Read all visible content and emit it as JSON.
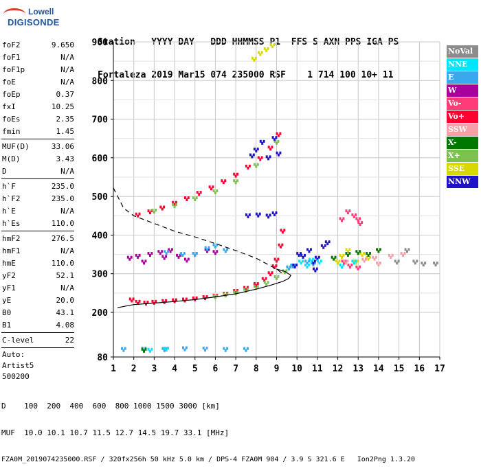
{
  "logo": {
    "line1": "Lowell",
    "line2": "DIGISONDE"
  },
  "header": {
    "row1": "Station   YYYY DAY   DDD HHMMSS P1  FFS S AXN PPS IGA PS",
    "row2": "Fortaleza 2019 Mar15 074 235000 RSF    1 714 100 10+ 11"
  },
  "params": [
    {
      "name": "foF2",
      "value": "9.650"
    },
    {
      "name": "foF1",
      "value": "N/A"
    },
    {
      "name": "foF1p",
      "value": "N/A"
    },
    {
      "name": "foE",
      "value": "N/A"
    },
    {
      "name": "foEp",
      "value": "0.37"
    },
    {
      "name": "fxI",
      "value": "10.25"
    },
    {
      "name": "foEs",
      "value": "2.35"
    },
    {
      "name": "fmin",
      "value": "1.45",
      "sep": true
    },
    {
      "name": "MUF(D)",
      "value": "33.06"
    },
    {
      "name": "M(D)",
      "value": "3.43"
    },
    {
      "name": "D",
      "value": "N/A",
      "sep": true
    },
    {
      "name": "h`F",
      "value": "235.0"
    },
    {
      "name": "h`F2",
      "value": "235.0"
    },
    {
      "name": "h`E",
      "value": "N/A"
    },
    {
      "name": "h`Es",
      "value": "110.0",
      "sep": true
    },
    {
      "name": "hmF2",
      "value": "276.5"
    },
    {
      "name": "hmF1",
      "value": "N/A"
    },
    {
      "name": "hmE",
      "value": "110.0"
    },
    {
      "name": "yF2",
      "value": "52.1"
    },
    {
      "name": "yF1",
      "value": "N/A"
    },
    {
      "name": "yE",
      "value": "20.0"
    },
    {
      "name": "B0",
      "value": "43.1"
    },
    {
      "name": "B1",
      "value": "4.08",
      "sep": true
    },
    {
      "name": "C-level",
      "value": "22",
      "sep": true
    }
  ],
  "autoscaling": [
    "Auto:",
    "Artist5",
    "500200"
  ],
  "legend": [
    {
      "label": "NoVal",
      "color": "#8c8c8c"
    },
    {
      "label": "NNE",
      "color": "#00e5ff"
    },
    {
      "label": "E",
      "color": "#3aa8ec"
    },
    {
      "label": "W",
      "color": "#a8009c"
    },
    {
      "label": "Vo-",
      "color": "#ff3c78"
    },
    {
      "label": "Vo+",
      "color": "#ff0030"
    },
    {
      "label": "SSW",
      "color": "#f5a0a8"
    },
    {
      "label": "X-",
      "color": "#007800"
    },
    {
      "label": "X+",
      "color": "#7cc050"
    },
    {
      "label": "SSE",
      "color": "#d8d800"
    },
    {
      "label": "NNW",
      "color": "#1e12c8"
    }
  ],
  "footer": {
    "line1": "D    100  200  400  600  800 1000 1500 3000 [km]",
    "line2": "MUF  10.0 10.1 10.7 11.5 12.7 14.5 19.7 33.1 [MHz]",
    "line3": "FZA0M_2019074235000.RSF / 320fx256h 50 kHz 5.0 km / DPS-4 FZA0M 904 / 3.9 S 321.6 E   Ion2Png 1.3.20"
  },
  "chart_data": {
    "type": "scatter",
    "xlim": [
      1,
      17
    ],
    "ylim": [
      80,
      900
    ],
    "x_ticks": [
      1,
      2,
      3,
      4,
      5,
      6,
      7,
      8,
      9,
      10,
      11,
      12,
      13,
      14,
      15,
      16,
      17
    ],
    "y_ticks": [
      80,
      200,
      300,
      400,
      500,
      600,
      700,
      800,
      900
    ],
    "grid": true,
    "legend_position": "right",
    "series": [
      {
        "name": "Vo+",
        "color": "#ff0030",
        "points": [
          [
            1.9,
            232
          ],
          [
            2.2,
            226
          ],
          [
            2.6,
            224
          ],
          [
            3.0,
            226
          ],
          [
            3.5,
            228
          ],
          [
            4.0,
            230
          ],
          [
            4.5,
            232
          ],
          [
            5.0,
            235
          ],
          [
            5.5,
            238
          ],
          [
            6.0,
            242
          ],
          [
            6.5,
            247
          ],
          [
            7.0,
            254
          ],
          [
            7.5,
            262
          ],
          [
            8.0,
            272
          ],
          [
            8.4,
            285
          ],
          [
            8.7,
            300
          ],
          [
            8.9,
            318
          ],
          [
            9.0,
            335
          ],
          [
            9.2,
            372
          ],
          [
            9.3,
            410
          ],
          [
            2.2,
            452
          ],
          [
            2.8,
            460
          ],
          [
            3.4,
            470
          ],
          [
            4.0,
            482
          ],
          [
            4.6,
            494
          ],
          [
            5.2,
            508
          ],
          [
            5.8,
            522
          ],
          [
            6.4,
            538
          ],
          [
            7.0,
            555
          ],
          [
            7.6,
            576
          ],
          [
            8.2,
            598
          ],
          [
            8.7,
            625
          ],
          [
            9.1,
            660
          ]
        ]
      },
      {
        "name": "X+",
        "color": "#7cc050",
        "points": [
          [
            6.0,
            240
          ],
          [
            6.5,
            245
          ],
          [
            7.0,
            250
          ],
          [
            7.5,
            257
          ],
          [
            8.0,
            265
          ],
          [
            8.5,
            275
          ],
          [
            9.0,
            290
          ],
          [
            9.4,
            305
          ],
          [
            9.6,
            315
          ],
          [
            3.0,
            462
          ],
          [
            4.0,
            476
          ],
          [
            5.0,
            494
          ],
          [
            6.0,
            512
          ],
          [
            7.0,
            538
          ],
          [
            8.0,
            580
          ],
          [
            9.0,
            640
          ]
        ]
      },
      {
        "name": "W",
        "color": "#a8009c",
        "points": [
          [
            2.2,
            345
          ],
          [
            2.8,
            350
          ],
          [
            3.3,
            355
          ],
          [
            3.8,
            360
          ],
          [
            4.2,
            345
          ],
          [
            4.6,
            335
          ],
          [
            5.0,
            350
          ],
          [
            5.6,
            360
          ],
          [
            6.0,
            355
          ],
          [
            1.8,
            340
          ],
          [
            2.5,
            330
          ],
          [
            3.5,
            342
          ]
        ]
      },
      {
        "name": "E",
        "color": "#3aa8ec",
        "points": [
          [
            1.5,
            100
          ],
          [
            2.5,
            101
          ],
          [
            3.5,
            100
          ],
          [
            4.5,
            102
          ],
          [
            5.5,
            101
          ],
          [
            6.5,
            100
          ],
          [
            7.5,
            100
          ],
          [
            5.0,
            350
          ],
          [
            5.6,
            365
          ],
          [
            6.0,
            372
          ],
          [
            6.5,
            360
          ],
          [
            3.6,
            355
          ],
          [
            4.4,
            350
          ],
          [
            9.6,
            315
          ],
          [
            9.8,
            320
          ],
          [
            10.5,
            330
          ],
          [
            10.8,
            325
          ]
        ]
      },
      {
        "name": "NNW",
        "color": "#1e12c8",
        "points": [
          [
            7.8,
            605
          ],
          [
            8.0,
            620
          ],
          [
            8.3,
            640
          ],
          [
            8.6,
            600
          ],
          [
            8.9,
            650
          ],
          [
            9.1,
            610
          ],
          [
            7.6,
            450
          ],
          [
            8.1,
            452
          ],
          [
            8.6,
            449
          ],
          [
            8.9,
            455
          ],
          [
            10.1,
            350
          ],
          [
            10.3,
            345
          ],
          [
            10.6,
            360
          ],
          [
            10.8,
            330
          ],
          [
            11.0,
            340
          ],
          [
            10.9,
            310
          ],
          [
            11.3,
            370
          ],
          [
            11.5,
            380
          ],
          [
            9.9,
            320
          ]
        ]
      },
      {
        "name": "SSE",
        "color": "#d8d800",
        "points": [
          [
            7.9,
            855
          ],
          [
            8.2,
            870
          ],
          [
            8.5,
            880
          ],
          [
            8.8,
            890
          ],
          [
            12.2,
            345
          ],
          [
            12.5,
            360
          ],
          [
            12.9,
            330
          ],
          [
            13.2,
            350
          ],
          [
            13.5,
            340
          ],
          [
            12.0,
            330
          ]
        ]
      },
      {
        "name": "X-",
        "color": "#007800",
        "points": [
          [
            2.5,
            98
          ],
          [
            12.5,
            350
          ],
          [
            13.0,
            355
          ],
          [
            13.5,
            350
          ],
          [
            14.0,
            360
          ],
          [
            11.8,
            340
          ]
        ]
      },
      {
        "name": "NNE",
        "color": "#00e5ff",
        "points": [
          [
            2.8,
            98
          ],
          [
            3.6,
            101
          ],
          [
            10.2,
            330
          ],
          [
            10.5,
            320
          ],
          [
            10.7,
            335
          ],
          [
            11.1,
            330
          ],
          [
            12.2,
            320
          ],
          [
            12.8,
            330
          ]
        ]
      },
      {
        "name": "Vo-",
        "color": "#ff3c78",
        "points": [
          [
            12.5,
            460
          ],
          [
            12.8,
            450
          ],
          [
            13.0,
            440
          ],
          [
            12.2,
            440
          ],
          [
            13.1,
            430
          ],
          [
            12.6,
            320
          ],
          [
            13.0,
            315
          ],
          [
            12.3,
            330
          ]
        ]
      },
      {
        "name": "SSW",
        "color": "#f5a0a8",
        "points": [
          [
            12.4,
            330
          ],
          [
            13.3,
            335
          ],
          [
            13.8,
            340
          ],
          [
            14.0,
            325
          ],
          [
            14.6,
            345
          ],
          [
            15.2,
            350
          ]
        ]
      },
      {
        "name": "NoVal",
        "color": "#8c8c8c",
        "points": [
          [
            14.9,
            330
          ],
          [
            15.4,
            360
          ],
          [
            16.2,
            325
          ],
          [
            16.8,
            325
          ],
          [
            15.8,
            330
          ]
        ]
      }
    ],
    "profile_curve": {
      "color": "#000000",
      "points": [
        [
          1.2,
          212
        ],
        [
          2.0,
          220
        ],
        [
          3.0,
          224
        ],
        [
          4.0,
          228
        ],
        [
          5.0,
          233
        ],
        [
          6.0,
          240
        ],
        [
          7.0,
          248
        ],
        [
          8.0,
          260
        ],
        [
          8.7,
          270
        ],
        [
          9.3,
          280
        ],
        [
          9.6,
          288
        ],
        [
          9.7,
          296
        ],
        [
          9.4,
          306
        ],
        [
          9.0,
          312
        ]
      ]
    },
    "virtual_height_curve": {
      "color": "#000000",
      "points": [
        [
          1.0,
          522
        ],
        [
          1.5,
          470
        ],
        [
          2.0,
          450
        ],
        [
          3.0,
          430
        ],
        [
          4.0,
          410
        ],
        [
          5.0,
          395
        ],
        [
          6.0,
          378
        ],
        [
          7.0,
          360
        ],
        [
          8.0,
          340
        ],
        [
          9.0,
          312
        ],
        [
          9.3,
          300
        ]
      ]
    }
  }
}
